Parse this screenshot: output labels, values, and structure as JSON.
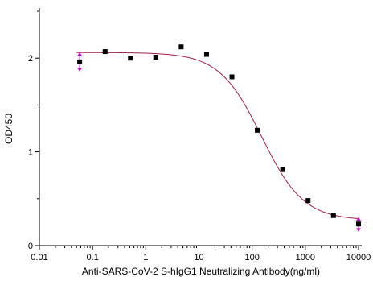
{
  "chart_data": {
    "type": "scatter",
    "title": "",
    "xlabel": "Anti-SARS-CoV-2 S-hIgG1 Neutralizing Antibody(ng/ml)",
    "ylabel": "OD450",
    "x_scale": "log",
    "xlim": [
      0.01,
      10000
    ],
    "ylim": [
      0,
      2.5
    ],
    "x_ticks": [
      0.01,
      0.1,
      1,
      10,
      100,
      1000,
      10000
    ],
    "x_tick_labels": [
      "0.01",
      "0.1",
      "1",
      "10",
      "100",
      "1000",
      "10000"
    ],
    "y_ticks": [
      0,
      1,
      2
    ],
    "y_tick_labels": [
      "0",
      "1",
      "2"
    ],
    "grid": false,
    "legend": "none",
    "series": [
      {
        "marker": "square",
        "color": "#000000",
        "points": [
          {
            "x": 0.0572,
            "y": 1.96
          },
          {
            "x": 0.172,
            "y": 2.07
          },
          {
            "x": 0.515,
            "y": 2.0
          },
          {
            "x": 1.54,
            "y": 2.01
          },
          {
            "x": 4.63,
            "y": 2.12
          },
          {
            "x": 13.9,
            "y": 2.04
          },
          {
            "x": 41.7,
            "y": 1.8
          },
          {
            "x": 125,
            "y": 1.23
          },
          {
            "x": 375,
            "y": 0.81
          },
          {
            "x": 1125,
            "y": 0.48
          },
          {
            "x": 3375,
            "y": 0.32
          },
          {
            "x": 10000,
            "y": 0.23
          }
        ]
      }
    ],
    "fit_curve": {
      "type": "4PL",
      "color": "#a0204a",
      "top": 2.06,
      "bottom": 0.27,
      "ec50": 150,
      "hill": 1.1
    },
    "error_bars": {
      "color": "#cc00cc",
      "points": [
        {
          "x": 0.0572,
          "low": 1.86,
          "high": 2.06
        },
        {
          "x": 10000,
          "low": 0.15,
          "high": 0.3
        }
      ]
    }
  }
}
